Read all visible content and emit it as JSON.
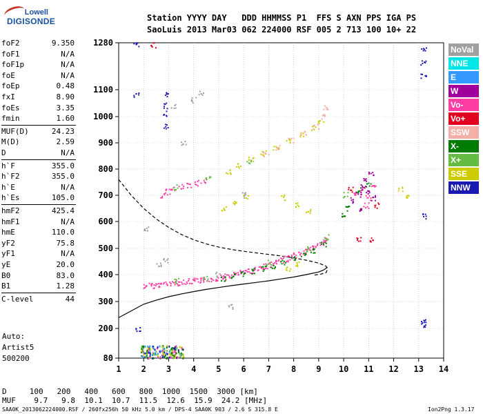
{
  "logo": {
    "line1": "Lowell",
    "line2": "DIGISONDE"
  },
  "header": {
    "line1": "Station YYYY DAY   DDD HHMMSS P1  FFS S AXN PPS IGA PS",
    "line2": "SaoLuis 2013 Mar03 062 224000 RSF 005 2 713 100 10+ 22"
  },
  "params": [
    {
      "name": "foF2",
      "value": "9.350"
    },
    {
      "name": "foF1",
      "value": "N/A"
    },
    {
      "name": "foF1p",
      "value": "N/A"
    },
    {
      "name": "foE",
      "value": "N/A"
    },
    {
      "name": "foEp",
      "value": "0.48"
    },
    {
      "name": "fxI",
      "value": "8.90"
    },
    {
      "name": "foEs",
      "value": "3.35"
    },
    {
      "name": "fmin",
      "value": "1.60"
    },
    {
      "name": "MUF(D)",
      "value": "24.23"
    },
    {
      "name": "M(D)",
      "value": "2.59"
    },
    {
      "name": "D",
      "value": "N/A"
    },
    {
      "name": "h`F",
      "value": "355.0"
    },
    {
      "name": "h`F2",
      "value": "355.0"
    },
    {
      "name": "h`E",
      "value": "N/A"
    },
    {
      "name": "h`Es",
      "value": "105.0"
    },
    {
      "name": "hmF2",
      "value": "425.4"
    },
    {
      "name": "hmF1",
      "value": "N/A"
    },
    {
      "name": "hmE",
      "value": "110.0"
    },
    {
      "name": "yF2",
      "value": "75.8"
    },
    {
      "name": "yF1",
      "value": "N/A"
    },
    {
      "name": "yE",
      "value": "20.0"
    },
    {
      "name": "B0",
      "value": "83.0"
    },
    {
      "name": "B1",
      "value": "1.28"
    },
    {
      "name": "C-level",
      "value": "44"
    }
  ],
  "autoscaler": {
    "line1": "Auto:",
    "line2": "Artist5",
    "line3": "500200"
  },
  "legend": [
    {
      "label": "NoVal",
      "color": "#a0a0a0"
    },
    {
      "label": "NNE",
      "color": "#00e5e5"
    },
    {
      "label": "E",
      "color": "#3399ff"
    },
    {
      "label": "W",
      "color": "#a0009a"
    },
    {
      "label": "Vo-",
      "color": "#ff3ea5"
    },
    {
      "label": "Vo+",
      "color": "#e00020"
    },
    {
      "label": "SSW",
      "color": "#f4b0a8"
    },
    {
      "label": "X-",
      "color": "#007a00"
    },
    {
      "label": "X+",
      "color": "#66bb44"
    },
    {
      "label": "SSE",
      "color": "#cccc00"
    },
    {
      "label": "NNW",
      "color": "#1a1ab0"
    }
  ],
  "dmuf": {
    "d_line": "D     100   200   400   600   800  1000  1500  3000 [km]",
    "muf_line": "MUF    9.7   9.8  10.1  10.7  11.5  12.6  15.9  24.2 [MHz]"
  },
  "footer": "SAA0K_2013062224000.RSF / 260fx256h 50 kHz 5.0 km / DPS-4 SAA0K 903 / 2.6 S 315.8 E",
  "version": "Ion2Png 1.3.17",
  "chart_data": {
    "type": "scatter",
    "title": "",
    "xlabel": "",
    "ylabel": "",
    "x_ticks": [
      1,
      2,
      3,
      4,
      5,
      6,
      7,
      8,
      9,
      10,
      11,
      12,
      13,
      14
    ],
    "y_ticks": [
      80,
      200,
      300,
      400,
      500,
      600,
      700,
      800,
      900,
      1000,
      1100,
      1280
    ],
    "xlim": [
      1,
      14
    ],
    "ylim": [
      80,
      1280
    ],
    "grid": true,
    "series": [
      {
        "name": "Vo-",
        "color": "#ff3ea5",
        "points": [
          [
            2.1,
            357
          ],
          [
            2.3,
            358
          ],
          [
            2.5,
            360
          ],
          [
            2.7,
            362
          ],
          [
            2.9,
            364
          ],
          [
            3.1,
            366
          ],
          [
            3.3,
            368
          ],
          [
            3.5,
            370
          ],
          [
            3.7,
            372
          ],
          [
            3.9,
            374
          ],
          [
            4.1,
            376
          ],
          [
            4.3,
            378
          ],
          [
            4.5,
            380
          ],
          [
            4.7,
            383
          ],
          [
            4.9,
            386
          ],
          [
            5.1,
            389
          ],
          [
            5.3,
            392
          ],
          [
            5.5,
            396
          ],
          [
            5.7,
            400
          ],
          [
            5.9,
            405
          ],
          [
            6.1,
            410
          ],
          [
            6.3,
            415
          ],
          [
            6.5,
            420
          ],
          [
            6.7,
            426
          ],
          [
            6.9,
            432
          ],
          [
            7.1,
            438
          ],
          [
            7.3,
            445
          ],
          [
            7.5,
            452
          ],
          [
            7.7,
            459
          ],
          [
            7.9,
            466
          ],
          [
            8.1,
            474
          ],
          [
            8.3,
            482
          ],
          [
            8.5,
            490
          ],
          [
            8.7,
            499
          ],
          [
            8.9,
            508
          ],
          [
            9.1,
            518
          ],
          [
            9.3,
            530
          ],
          [
            2.8,
            700
          ],
          [
            3.0,
            712
          ],
          [
            3.2,
            722
          ],
          [
            3.5,
            730
          ],
          [
            3.8,
            738
          ],
          [
            4.1,
            746
          ],
          [
            4.4,
            752
          ],
          [
            10.5,
            700
          ],
          [
            10.8,
            720
          ],
          [
            11.0,
            690
          ],
          [
            11.2,
            740
          ],
          [
            10.9,
            660
          ]
        ]
      },
      {
        "name": "X-",
        "color": "#007a00",
        "points": [
          [
            5.2,
            384
          ],
          [
            5.6,
            393
          ],
          [
            6.0,
            402
          ],
          [
            6.4,
            412
          ],
          [
            6.8,
            422
          ],
          [
            7.2,
            433
          ],
          [
            7.6,
            447
          ],
          [
            8.0,
            460
          ],
          [
            8.4,
            475
          ],
          [
            8.8,
            492
          ],
          [
            9.2,
            512
          ],
          [
            10.0,
            620
          ],
          [
            10.2,
            650
          ],
          [
            10.6,
            720
          ],
          [
            11.0,
            740
          ]
        ]
      },
      {
        "name": "X+",
        "color": "#66bb44",
        "points": [
          [
            3.3,
            375
          ],
          [
            4.5,
            385
          ],
          [
            7.0,
            445
          ],
          [
            8.6,
            495
          ],
          [
            9.3,
            540
          ],
          [
            3.3,
            730
          ],
          [
            4.6,
            760
          ],
          [
            6.2,
            830
          ],
          [
            10.1,
            700
          ]
        ]
      },
      {
        "name": "SSE",
        "color": "#cccc00",
        "points": [
          [
            5.4,
            790
          ],
          [
            5.8,
            810
          ],
          [
            6.3,
            835
          ],
          [
            6.8,
            860
          ],
          [
            7.3,
            880
          ],
          [
            7.8,
            905
          ],
          [
            8.3,
            930
          ],
          [
            8.8,
            955
          ],
          [
            9.1,
            975
          ],
          [
            5.2,
            650
          ],
          [
            5.6,
            670
          ],
          [
            6.1,
            690
          ],
          [
            7.6,
            690
          ],
          [
            8.1,
            660
          ],
          [
            8.6,
            640
          ],
          [
            12.3,
            720
          ],
          [
            12.5,
            700
          ],
          [
            7.8,
            420
          ],
          [
            8.2,
            440
          ]
        ]
      },
      {
        "name": "SSW",
        "color": "#f4b0a8",
        "points": [
          [
            6.9,
            855
          ],
          [
            7.4,
            880
          ],
          [
            7.9,
            910
          ],
          [
            8.4,
            935
          ],
          [
            8.9,
            960
          ],
          [
            9.2,
            1000
          ],
          [
            9.3,
            1030
          ]
        ]
      },
      {
        "name": "W",
        "color": "#a0009a",
        "points": [
          [
            10.4,
            680
          ],
          [
            10.6,
            700
          ],
          [
            10.8,
            730
          ],
          [
            11.0,
            710
          ],
          [
            11.2,
            690
          ],
          [
            10.9,
            760
          ],
          [
            11.1,
            780
          ],
          [
            10.7,
            640
          ]
        ]
      },
      {
        "name": "NNW",
        "color": "#1a1ab0",
        "points": [
          [
            1.7,
            1275
          ],
          [
            1.7,
            1080
          ],
          [
            2.9,
            1080
          ],
          [
            2.9,
            1040
          ],
          [
            2.9,
            1010
          ],
          [
            2.9,
            960
          ],
          [
            13.2,
            1250
          ],
          [
            13.2,
            1200
          ],
          [
            13.2,
            1150
          ],
          [
            13.2,
            620
          ],
          [
            13.2,
            230
          ],
          [
            13.2,
            210
          ],
          [
            1.8,
            195
          ],
          [
            2.0,
            95
          ]
        ]
      },
      {
        "name": "Vo+",
        "color": "#e00020",
        "points": [
          [
            2.4,
            1270
          ],
          [
            10.6,
            530
          ],
          [
            11.1,
            530
          ],
          [
            10.3,
            720
          ],
          [
            11.3,
            660
          ]
        ]
      },
      {
        "name": "NoVal",
        "color": "#a0a0a0",
        "points": [
          [
            3.2,
            1040
          ],
          [
            3.6,
            900
          ],
          [
            4.0,
            1060
          ],
          [
            4.3,
            1090
          ],
          [
            6.0,
            700
          ],
          [
            5.0,
            400
          ],
          [
            5.5,
            280
          ],
          [
            2.1,
            570
          ],
          [
            2.6,
            440
          ],
          [
            2.9,
            450
          ]
        ]
      }
    ],
    "lines": [
      {
        "name": "profile-dashed",
        "style": "dashed",
        "points": [
          [
            1.0,
            760
          ],
          [
            1.5,
            700
          ],
          [
            2.0,
            650
          ],
          [
            2.5,
            610
          ],
          [
            3.0,
            578
          ],
          [
            3.5,
            552
          ],
          [
            4.0,
            532
          ],
          [
            4.5,
            517
          ],
          [
            5.0,
            505
          ],
          [
            5.5,
            496
          ],
          [
            6.0,
            489
          ],
          [
            6.5,
            483
          ],
          [
            7.0,
            477
          ],
          [
            7.5,
            471
          ],
          [
            8.0,
            464
          ],
          [
            8.5,
            455
          ],
          [
            9.0,
            444
          ],
          [
            9.3,
            432
          ],
          [
            9.35,
            420
          ],
          [
            9.3,
            408
          ],
          [
            9.1,
            402
          ],
          [
            8.8,
            398
          ]
        ]
      },
      {
        "name": "profile-solid",
        "style": "solid",
        "points": [
          [
            1.0,
            240
          ],
          [
            1.5,
            265
          ],
          [
            2.0,
            290
          ],
          [
            2.5,
            305
          ],
          [
            3.0,
            318
          ],
          [
            3.5,
            328
          ],
          [
            4.0,
            337
          ],
          [
            4.5,
            345
          ],
          [
            5.0,
            352
          ],
          [
            5.5,
            359
          ],
          [
            6.0,
            365
          ],
          [
            6.5,
            371
          ],
          [
            7.0,
            377
          ],
          [
            7.5,
            384
          ],
          [
            8.0,
            391
          ],
          [
            8.5,
            400
          ],
          [
            9.0,
            410
          ],
          [
            9.2,
            418
          ],
          [
            9.35,
            428
          ]
        ]
      }
    ],
    "low_cluster": {
      "description_colors": [
        "#ff3ea5",
        "#007a00",
        "#66bb44",
        "#cccc00",
        "#1a1ab0",
        "#3399ff"
      ],
      "x_range": [
        1.9,
        3.6
      ],
      "y_range": [
        80,
        130
      ]
    }
  }
}
